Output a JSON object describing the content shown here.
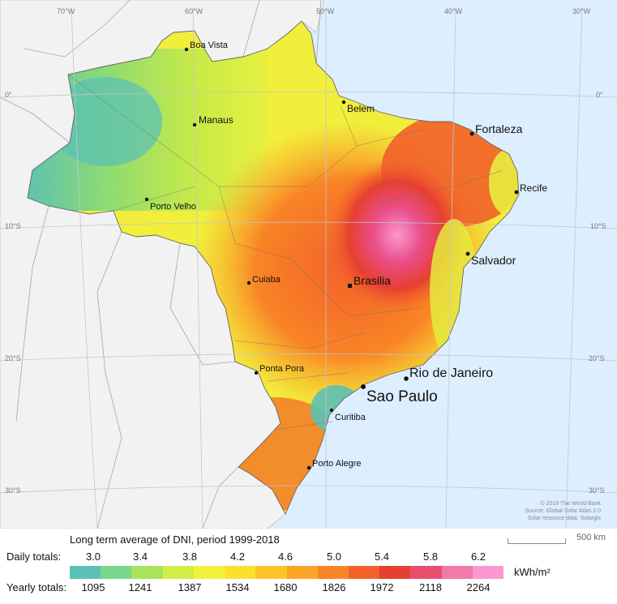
{
  "map": {
    "colors": {
      "ocean": "#ddeeff",
      "land": "#f2f2f2",
      "border": "#9a9a9a",
      "grid": "#c0c7d0"
    },
    "grid_labels": {
      "lon": [
        "70°W",
        "60°W",
        "50°W",
        "40°W",
        "30°W"
      ],
      "lat": [
        "0°",
        "10°S",
        "20°S",
        "30°S"
      ]
    },
    "cities": [
      {
        "name": "Boa Vista",
        "size": "small"
      },
      {
        "name": "Manaus",
        "size": "small"
      },
      {
        "name": "Belem",
        "size": "small"
      },
      {
        "name": "Fortaleza",
        "size": "medium"
      },
      {
        "name": "Recife",
        "size": "small"
      },
      {
        "name": "Porto Velho",
        "size": "small"
      },
      {
        "name": "Salvador",
        "size": "medium"
      },
      {
        "name": "Cuiaba",
        "size": "small"
      },
      {
        "name": "Brasilia",
        "size": "medium"
      },
      {
        "name": "Ponta Pora",
        "size": "small"
      },
      {
        "name": "Rio de Janeiro",
        "size": "large"
      },
      {
        "name": "Sao Paulo",
        "size": "xlarge"
      },
      {
        "name": "Curitiba",
        "size": "small"
      },
      {
        "name": "Porto Alegre",
        "size": "small"
      }
    ],
    "credits": [
      "© 2019 The World Bank",
      "Source: Global Solar Atlas 2.0",
      "Solar resource data: Solargis"
    ],
    "scale_label": "500 km"
  },
  "legend": {
    "title": "Long term average of DNI, period 1999-2018",
    "daily_label": "Daily totals:",
    "yearly_label": "Yearly totals:",
    "daily_ticks": [
      "3.0",
      "3.4",
      "3.8",
      "4.2",
      "4.6",
      "5.0",
      "5.4",
      "5.8",
      "6.2"
    ],
    "yearly_ticks": [
      "1095",
      "1241",
      "1387",
      "1534",
      "1680",
      "1826",
      "1972",
      "2118",
      "2264"
    ],
    "unit": "kWh/m²",
    "colors": [
      "#5cc1b4",
      "#78d78c",
      "#a8e35a",
      "#d4ee48",
      "#f2f23c",
      "#fbe02e",
      "#fcc32a",
      "#fca428",
      "#f98426",
      "#f2612a",
      "#e64030",
      "#ea4e6e",
      "#f27aa8",
      "#fb98d0"
    ]
  }
}
